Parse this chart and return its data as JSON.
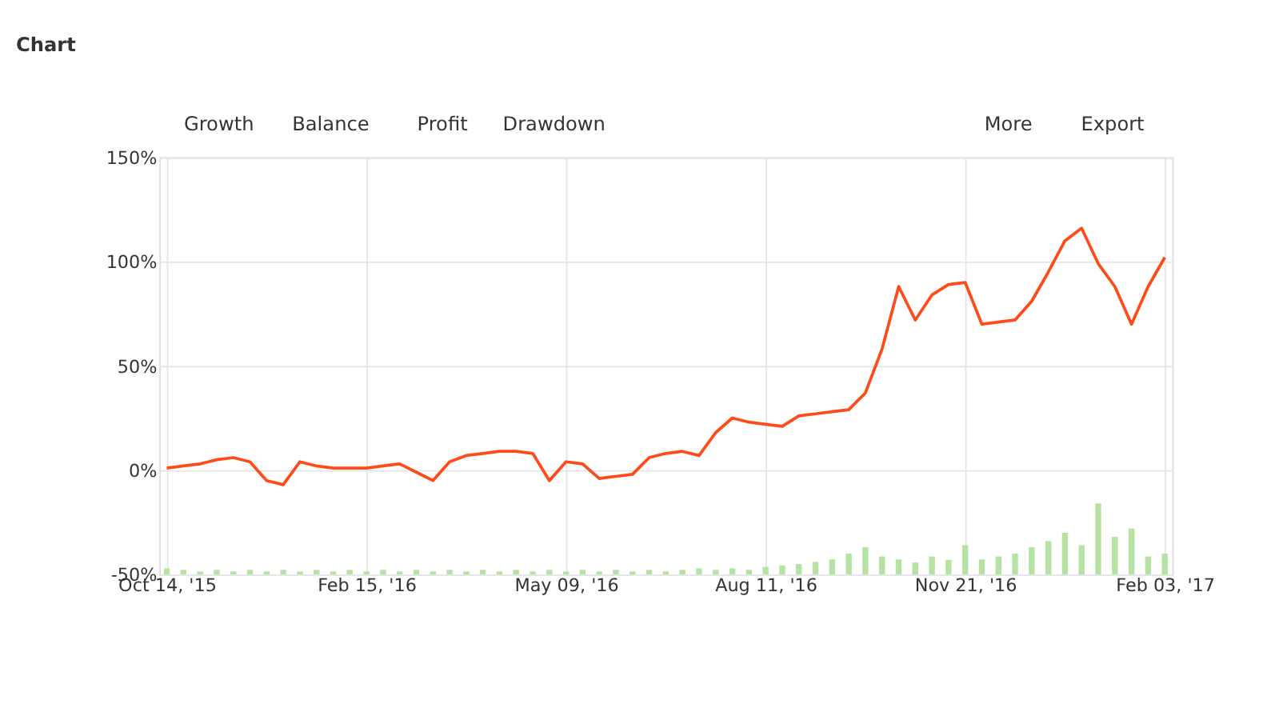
{
  "chart_data": {
    "type": "line",
    "title": "Chart",
    "annotations": [
      "Growth",
      "Balance",
      "Profit",
      "Drawdown",
      "More",
      "Export"
    ],
    "categories": [
      "Oct 14, '15",
      null,
      null,
      null,
      null,
      null,
      null,
      null,
      null,
      null,
      null,
      null,
      "Feb 15, '16",
      null,
      null,
      null,
      null,
      null,
      null,
      null,
      null,
      null,
      null,
      null,
      "May 09, '16",
      null,
      null,
      null,
      null,
      null,
      null,
      null,
      null,
      null,
      null,
      null,
      "Aug 11, '16",
      null,
      null,
      null,
      null,
      null,
      null,
      null,
      null,
      null,
      null,
      null,
      "Nov 21, '16",
      null,
      null,
      null,
      null,
      null,
      null,
      null,
      null,
      null,
      null,
      null,
      "Feb 03, '17"
    ],
    "ylim": [
      -50,
      150
    ],
    "yticks": [
      {
        "value": -50,
        "label": "-50%"
      },
      {
        "value": 0,
        "label": "0%"
      },
      {
        "value": 50,
        "label": "50%"
      },
      {
        "value": 100,
        "label": "100%"
      },
      {
        "value": 150,
        "label": "150%"
      }
    ],
    "grid": true,
    "series": [
      {
        "type": "bar",
        "color": "#b6e3a4",
        "base": [
          -50,
          -50,
          -50,
          -50,
          -50,
          -50,
          -50,
          -50,
          -50,
          -50,
          -50,
          -50,
          -50,
          -50,
          -50,
          -50,
          -50,
          -50,
          -50,
          -50,
          -50,
          -50,
          -50,
          -50,
          -50,
          -50,
          -50,
          -50,
          -50,
          -50,
          -50,
          -50,
          -50,
          -50,
          -50,
          -50,
          -50,
          -50,
          -50,
          -50,
          -50,
          -50,
          -50,
          -50,
          -50,
          -50,
          -50,
          -50,
          -50,
          -50,
          -50,
          -50,
          -50,
          -50,
          -50,
          -50,
          -50,
          -50,
          -50,
          -50,
          -50
        ],
        "values": [
          2.9,
          2.2,
          1.4,
          2.2,
          1.4,
          2.2,
          1.4,
          2.2,
          1.4,
          2.2,
          1.4,
          2.2,
          1.4,
          2.2,
          1.4,
          2.2,
          1.4,
          2.2,
          1.4,
          2.2,
          1.4,
          2.2,
          1.4,
          2.2,
          1.4,
          2.2,
          1.4,
          2.2,
          1.4,
          2.2,
          1.4,
          2.2,
          2.9,
          2.2,
          2.9,
          2.2,
          3.6,
          4.3,
          5,
          6,
          7.2,
          10,
          13,
          8.6,
          7.2,
          5.7,
          8.6,
          7,
          14,
          7.2,
          8.6,
          10,
          13,
          16,
          20,
          14,
          34,
          18,
          22,
          8.6,
          10
        ]
      },
      {
        "color": "#ff4a1a",
        "line_style": "solid",
        "values": [
          1,
          2,
          3,
          5,
          6,
          4,
          -5,
          -7,
          4,
          2,
          1,
          1,
          1,
          2,
          3,
          -1,
          -5,
          4,
          7,
          8,
          9,
          9,
          8,
          -5,
          4,
          3,
          -4,
          -3,
          -2,
          6,
          8,
          9,
          7,
          18,
          25,
          23,
          22,
          21,
          26,
          27,
          28,
          29,
          37,
          58,
          88,
          72,
          84,
          89,
          90,
          70,
          71,
          72,
          81,
          95,
          110,
          116,
          99,
          88,
          70,
          88,
          102
        ]
      }
    ]
  }
}
